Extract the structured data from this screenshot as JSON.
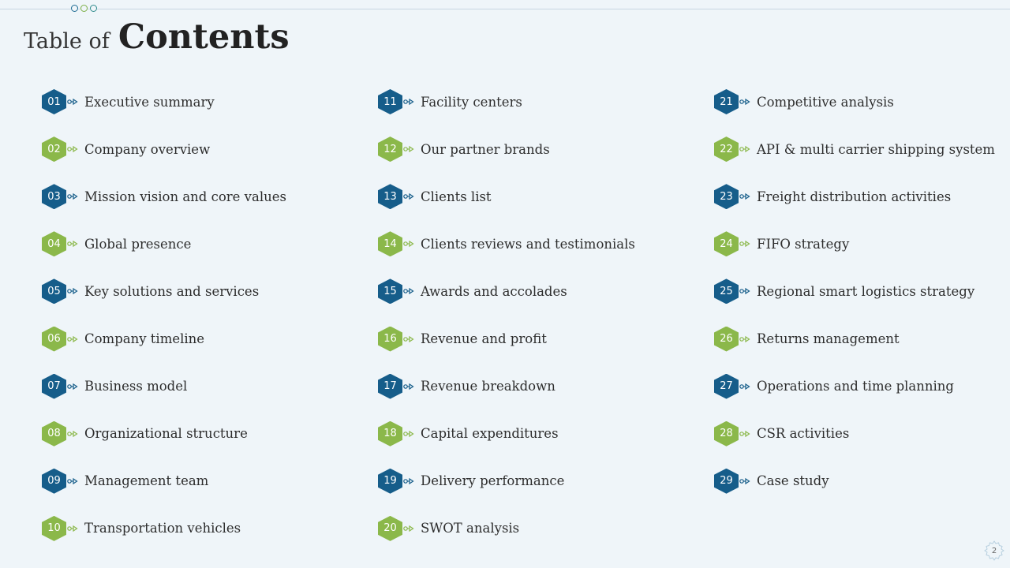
{
  "title": {
    "prefix": "Table of",
    "main": "Contents"
  },
  "colors": {
    "blue": "#165d8a",
    "green": "#8bb84a",
    "background": "#eff5f9"
  },
  "items": [
    {
      "number": "01",
      "label": "Executive summary",
      "color": "blue"
    },
    {
      "number": "02",
      "label": "Company overview",
      "color": "green"
    },
    {
      "number": "03",
      "label": "Mission vision and core values",
      "color": "blue"
    },
    {
      "number": "04",
      "label": "Global presence",
      "color": "green"
    },
    {
      "number": "05",
      "label": "Key solutions and services",
      "color": "blue"
    },
    {
      "number": "06",
      "label": "Company timeline",
      "color": "green"
    },
    {
      "number": "07",
      "label": "Business model",
      "color": "blue"
    },
    {
      "number": "08",
      "label": "Organizational structure",
      "color": "green"
    },
    {
      "number": "09",
      "label": "Management team",
      "color": "blue"
    },
    {
      "number": "10",
      "label": "Transportation vehicles",
      "color": "green"
    },
    {
      "number": "11",
      "label": "Facility centers",
      "color": "blue"
    },
    {
      "number": "12",
      "label": "Our partner brands",
      "color": "green"
    },
    {
      "number": "13",
      "label": "Clients list",
      "color": "blue"
    },
    {
      "number": "14",
      "label": "Clients reviews and testimonials",
      "color": "green"
    },
    {
      "number": "15",
      "label": "Awards and accolades",
      "color": "blue"
    },
    {
      "number": "16",
      "label": "Revenue and profit",
      "color": "green"
    },
    {
      "number": "17",
      "label": "Revenue breakdown",
      "color": "blue"
    },
    {
      "number": "18",
      "label": "Capital expenditures",
      "color": "green"
    },
    {
      "number": "19",
      "label": "Delivery performance",
      "color": "blue"
    },
    {
      "number": "20",
      "label": "SWOT analysis",
      "color": "green"
    },
    {
      "number": "21",
      "label": "Competitive analysis",
      "color": "blue"
    },
    {
      "number": "22",
      "label": "API & multi carrier shipping system",
      "color": "green"
    },
    {
      "number": "23",
      "label": "Freight distribution activities",
      "color": "blue"
    },
    {
      "number": "24",
      "label": "FIFO strategy",
      "color": "green"
    },
    {
      "number": "25",
      "label": "Regional smart logistics strategy",
      "color": "blue"
    },
    {
      "number": "26",
      "label": "Returns management",
      "color": "green"
    },
    {
      "number": "27",
      "label": "Operations and time planning",
      "color": "blue"
    },
    {
      "number": "28",
      "label": "CSR activities",
      "color": "green"
    },
    {
      "number": "29",
      "label": "Case study",
      "color": "blue"
    }
  ],
  "page_number": "2"
}
